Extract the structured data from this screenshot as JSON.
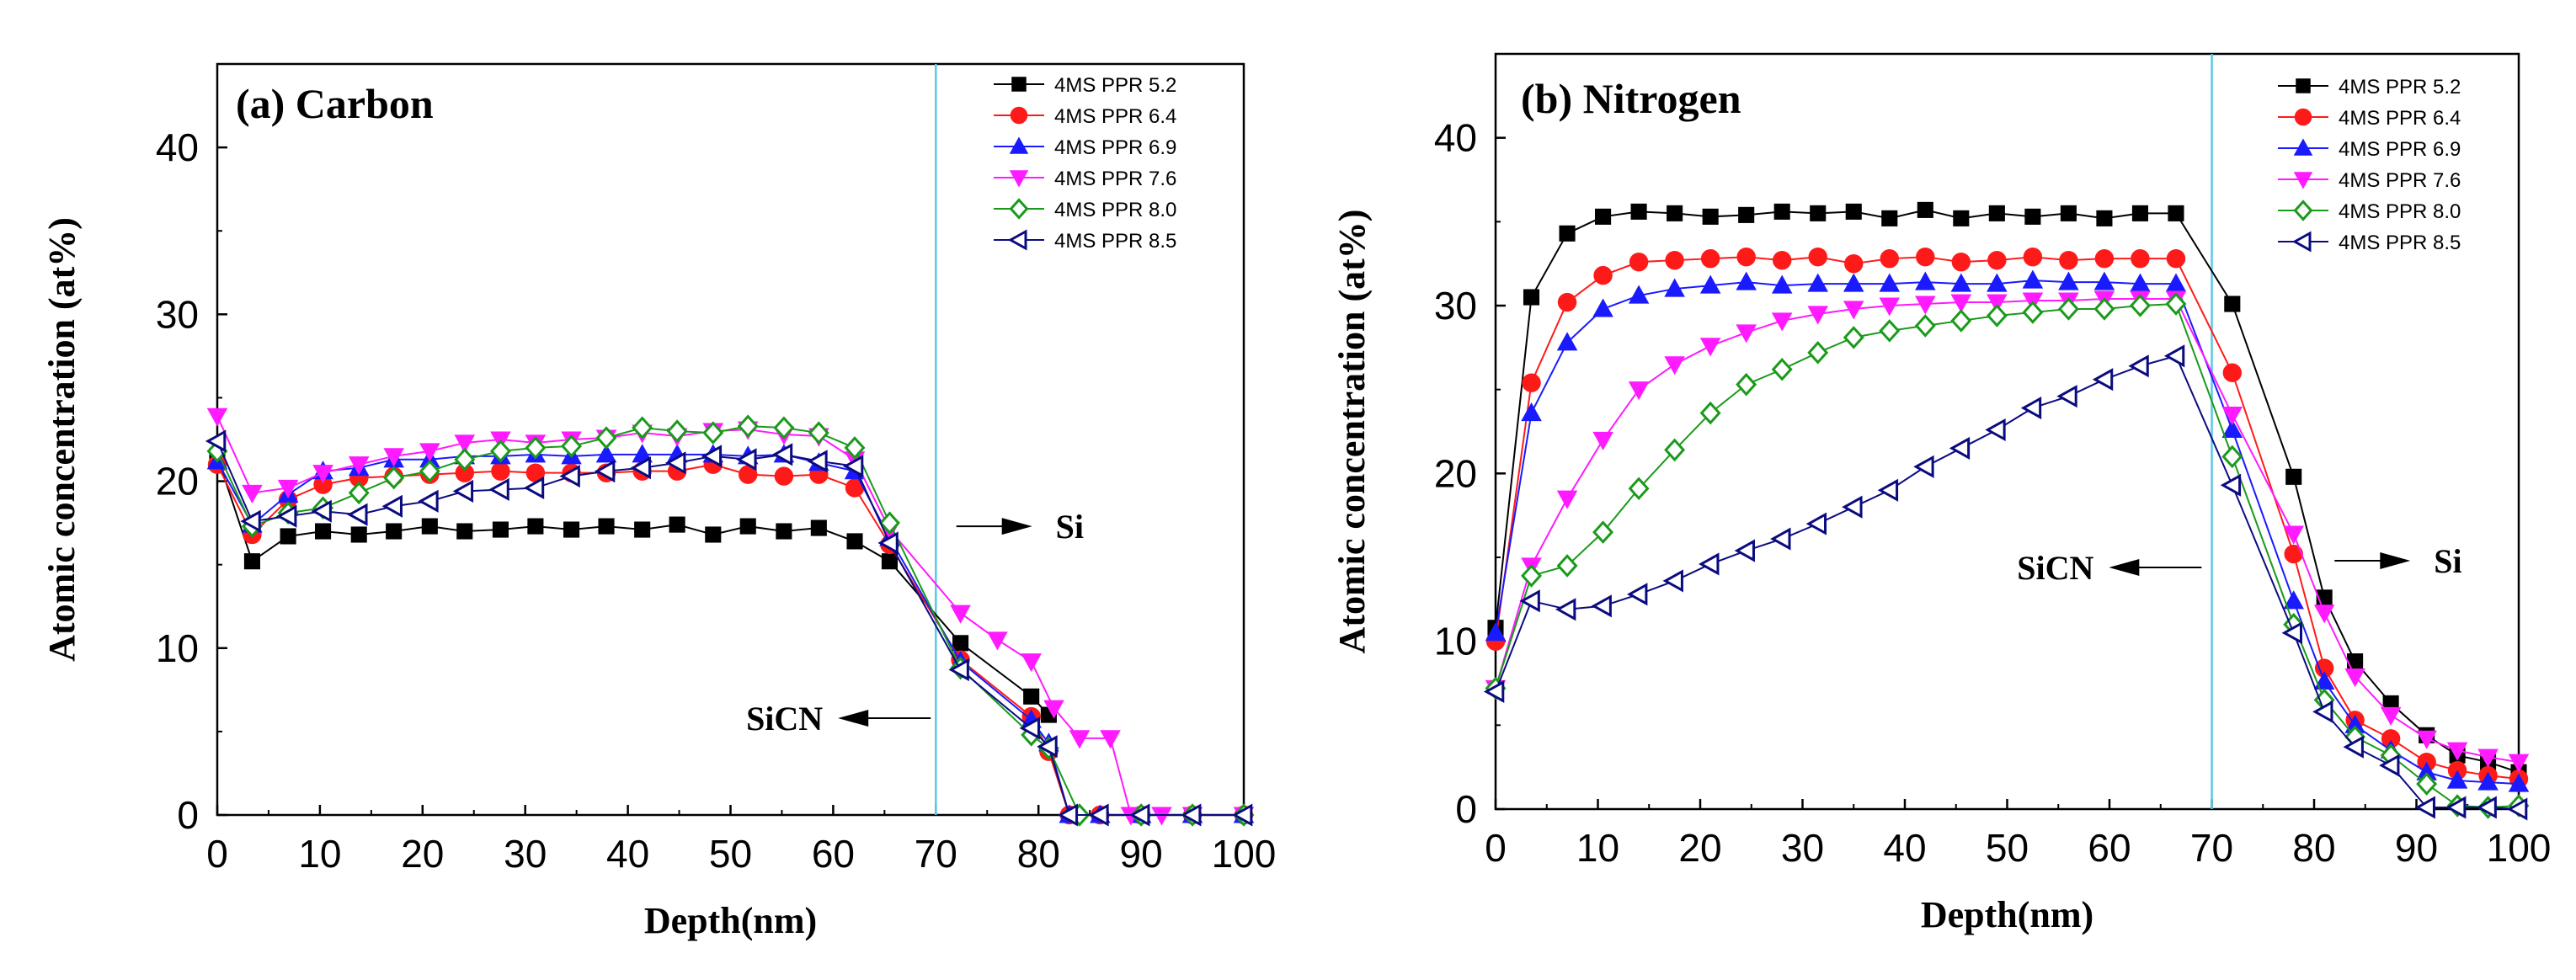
{
  "chart_data": [
    {
      "type": "line",
      "panel": "a",
      "title": "(a) Carbon",
      "xlabel": "Depth(nm)",
      "ylabel": "Atomic concentration (at%)",
      "xlim": [
        0,
        100
      ],
      "ylim": [
        0,
        45
      ],
      "xticks": [
        0,
        10,
        20,
        30,
        40,
        50,
        60,
        70,
        80,
        90,
        100
      ],
      "yticks": [
        0,
        10,
        20,
        30,
        40
      ],
      "interface_depth": 70,
      "interface_color": "#5bc8e8",
      "legend_position": "top-right",
      "annotations": [
        {
          "text": "Si",
          "arrow": "right",
          "x": 72,
          "y": 17.3
        },
        {
          "text": "SiCN",
          "arrow": "left",
          "x": 69.5,
          "y": 5.8
        }
      ],
      "series": [
        {
          "name": "4MS PPR 5.2",
          "color": "#000000",
          "marker": "square",
          "filled": true,
          "x": [
            0,
            3.4,
            6.9,
            10.3,
            13.8,
            17.2,
            20.7,
            24.1,
            27.6,
            31,
            34.5,
            37.9,
            41.4,
            44.8,
            48.3,
            51.7,
            55.2,
            58.6,
            62.1,
            65.5,
            72.4,
            79.3,
            81
          ],
          "y": [
            21.5,
            15.2,
            16.7,
            17,
            16.8,
            17,
            17.3,
            17,
            17.1,
            17.3,
            17.1,
            17.3,
            17.1,
            17.4,
            16.8,
            17.3,
            17,
            17.2,
            16.4,
            15.2,
            10.3,
            7.1,
            6
          ]
        },
        {
          "name": "4MS PPR 6.4",
          "color": "#ff1a1a",
          "marker": "circle",
          "filled": true,
          "x": [
            0,
            3.4,
            6.9,
            10.3,
            13.8,
            17.2,
            20.7,
            24.1,
            27.6,
            31,
            34.5,
            37.9,
            41.4,
            44.8,
            48.3,
            51.7,
            55.2,
            58.6,
            62.1,
            65.5,
            72.4,
            79.3,
            81,
            83,
            86,
            90,
            95,
            100
          ],
          "y": [
            21,
            16.8,
            18.9,
            19.8,
            20.2,
            20.3,
            20.4,
            20.5,
            20.6,
            20.5,
            20.5,
            20.5,
            20.6,
            20.6,
            21,
            20.4,
            20.3,
            20.4,
            19.6,
            16.2,
            9.3,
            5.9,
            3.8,
            0,
            0,
            0,
            0,
            0
          ]
        },
        {
          "name": "4MS PPR 6.9",
          "color": "#1a1aff",
          "marker": "triangle-up",
          "filled": true,
          "x": [
            0,
            3.4,
            6.9,
            10.3,
            13.8,
            17.2,
            20.7,
            24.1,
            27.6,
            31,
            34.5,
            37.9,
            41.4,
            44.8,
            48.3,
            51.7,
            55.2,
            58.6,
            62.1,
            65.5,
            72.4,
            79.3,
            81,
            83,
            86,
            90,
            95,
            100
          ],
          "y": [
            21.2,
            17.4,
            19.2,
            20.6,
            20.8,
            21.3,
            21.3,
            21.5,
            21.5,
            21.6,
            21.5,
            21.6,
            21.6,
            21.6,
            21.6,
            21.5,
            21.6,
            21.1,
            20.6,
            16.6,
            9.2,
            5.7,
            4.3,
            0,
            0,
            0,
            0,
            0
          ]
        },
        {
          "name": "4MS PPR 7.6",
          "color": "#ff1aff",
          "marker": "triangle-down",
          "filled": true,
          "x": [
            0,
            3.4,
            6.9,
            10.3,
            13.8,
            17.2,
            20.7,
            24.1,
            27.6,
            31,
            34.5,
            37.9,
            41.4,
            44.8,
            48.3,
            51.7,
            55.2,
            58.6,
            62.1,
            65.5,
            72.4,
            76,
            79.3,
            81.5,
            84,
            87,
            89,
            92,
            95,
            100
          ],
          "y": [
            23.9,
            19.3,
            19.6,
            20.5,
            21,
            21.5,
            21.8,
            22.3,
            22.5,
            22.3,
            22.5,
            22.6,
            22.9,
            22.7,
            23,
            23.1,
            22.8,
            22.7,
            21.3,
            17.1,
            12.1,
            10.5,
            9.2,
            6.4,
            4.6,
            4.6,
            0,
            0,
            0,
            0
          ]
        },
        {
          "name": "4MS PPR 8.0",
          "color": "#1a9a1a",
          "marker": "diamond",
          "filled": false,
          "x": [
            0,
            3.4,
            6.9,
            10.3,
            13.8,
            17.2,
            20.7,
            24.1,
            27.6,
            31,
            34.5,
            37.9,
            41.4,
            44.8,
            48.3,
            51.7,
            55.2,
            58.6,
            62.1,
            65.5,
            72.4,
            79.3,
            81,
            84,
            90,
            95,
            100
          ],
          "y": [
            21.8,
            17.3,
            18.1,
            18.4,
            19.3,
            20.2,
            20.6,
            21.3,
            21.8,
            22,
            22.1,
            22.6,
            23.2,
            23,
            22.9,
            23.3,
            23.2,
            22.9,
            22,
            17.5,
            8.8,
            4.8,
            4,
            0,
            0,
            0,
            0
          ]
        },
        {
          "name": "4MS PPR 8.5",
          "color": "#0b0b80",
          "marker": "triangle-left",
          "filled": false,
          "x": [
            0,
            3.4,
            6.9,
            10.3,
            13.8,
            17.2,
            20.7,
            24.1,
            27.6,
            31,
            34.5,
            37.9,
            41.4,
            44.8,
            48.3,
            51.7,
            55.2,
            58.6,
            62.1,
            65.5,
            72.4,
            79.3,
            81,
            83,
            86,
            90,
            95,
            100
          ],
          "y": [
            22.4,
            17.6,
            17.9,
            18.2,
            18,
            18.5,
            18.8,
            19.4,
            19.5,
            19.6,
            20.3,
            20.6,
            20.8,
            21.1,
            21.5,
            21.3,
            21.6,
            21.2,
            20.9,
            16.3,
            8.7,
            5.2,
            4.1,
            0,
            0,
            0,
            0,
            0
          ]
        }
      ]
    },
    {
      "type": "line",
      "panel": "b",
      "title": "(b) Nitrogen",
      "xlabel": "Depth(nm)",
      "ylabel": "Atomic concentration (at%)",
      "xlim": [
        0,
        100
      ],
      "ylim": [
        0,
        45
      ],
      "xticks": [
        0,
        10,
        20,
        30,
        40,
        50,
        60,
        70,
        80,
        90,
        100
      ],
      "yticks": [
        0,
        10,
        20,
        30,
        40
      ],
      "interface_depth": 70,
      "interface_color": "#5bc8e8",
      "legend_position": "top-right",
      "annotations": [
        {
          "text": "Si",
          "arrow": "right",
          "x": 82,
          "y": 14.8
        },
        {
          "text": "SiCN",
          "arrow": "left",
          "x": 69,
          "y": 14.4
        }
      ],
      "series": [
        {
          "name": "4MS PPR 5.2",
          "color": "#000000",
          "marker": "square",
          "filled": true,
          "x": [
            0,
            3.5,
            7,
            10.5,
            14,
            17.5,
            21,
            24.5,
            28,
            31.5,
            35,
            38.5,
            42,
            45.5,
            49,
            52.5,
            56,
            59.5,
            63,
            66.5,
            72,
            78,
            81,
            84,
            87.5,
            91,
            94,
            97,
            100
          ],
          "y": [
            10.8,
            30.5,
            34.3,
            35.3,
            35.6,
            35.5,
            35.3,
            35.4,
            35.6,
            35.5,
            35.6,
            35.2,
            35.7,
            35.2,
            35.5,
            35.3,
            35.5,
            35.2,
            35.5,
            35.5,
            30.1,
            19.8,
            12.6,
            8.8,
            6.3,
            4.4,
            3.2,
            2.8,
            2.2
          ]
        },
        {
          "name": "4MS PPR 6.4",
          "color": "#ff1a1a",
          "marker": "circle",
          "filled": true,
          "x": [
            0,
            3.5,
            7,
            10.5,
            14,
            17.5,
            21,
            24.5,
            28,
            31.5,
            35,
            38.5,
            42,
            45.5,
            49,
            52.5,
            56,
            59.5,
            63,
            66.5,
            72,
            78,
            81,
            84,
            87.5,
            91,
            94,
            97,
            100
          ],
          "y": [
            10,
            25.4,
            30.2,
            31.8,
            32.6,
            32.7,
            32.8,
            32.9,
            32.7,
            32.9,
            32.5,
            32.8,
            32.9,
            32.6,
            32.7,
            32.9,
            32.7,
            32.8,
            32.8,
            32.8,
            26,
            15.2,
            8.4,
            5.3,
            4.2,
            2.8,
            2.3,
            2.0,
            1.8
          ]
        },
        {
          "name": "4MS PPR 6.9",
          "color": "#1a1aff",
          "marker": "triangle-up",
          "filled": true,
          "x": [
            0,
            3.5,
            7,
            10.5,
            14,
            17.5,
            21,
            24.5,
            28,
            31.5,
            35,
            38.5,
            42,
            45.5,
            49,
            52.5,
            56,
            59.5,
            63,
            66.5,
            72,
            78,
            81,
            84,
            87.5,
            91,
            94,
            97,
            100
          ],
          "y": [
            10.5,
            23.6,
            27.8,
            29.8,
            30.6,
            31,
            31.2,
            31.4,
            31.2,
            31.3,
            31.3,
            31.3,
            31.4,
            31.3,
            31.3,
            31.5,
            31.4,
            31.4,
            31.3,
            31.3,
            22.6,
            12.4,
            7.6,
            5,
            3.5,
            2.2,
            1.7,
            1.6,
            1.5
          ]
        },
        {
          "name": "4MS PPR 7.6",
          "color": "#ff1aff",
          "marker": "triangle-down",
          "filled": true,
          "x": [
            0,
            3.5,
            7,
            10.5,
            14,
            17.5,
            21,
            24.5,
            28,
            31.5,
            35,
            38.5,
            42,
            45.5,
            49,
            52.5,
            56,
            59.5,
            63,
            66.5,
            72,
            78,
            81,
            84,
            87.5,
            91,
            94,
            97,
            100
          ],
          "y": [
            7.2,
            14.5,
            18.5,
            22,
            25,
            26.5,
            27.6,
            28.4,
            29.1,
            29.5,
            29.8,
            30,
            30.1,
            30.2,
            30.2,
            30.3,
            30.3,
            30.4,
            30.4,
            30.4,
            23.5,
            16.4,
            11.7,
            7.9,
            5.6,
            4.2,
            3.5,
            3.1,
            2.8
          ]
        },
        {
          "name": "4MS PPR 8.0",
          "color": "#1a9a1a",
          "marker": "diamond",
          "filled": false,
          "x": [
            0,
            3.5,
            7,
            10.5,
            14,
            17.5,
            21,
            24.5,
            28,
            31.5,
            35,
            38.5,
            42,
            45.5,
            49,
            52.5,
            56,
            59.5,
            63,
            66.5,
            72,
            78,
            81,
            84,
            87.5,
            91,
            94,
            97,
            100
          ],
          "y": [
            7.2,
            13.9,
            14.5,
            16.5,
            19.1,
            21.4,
            23.6,
            25.3,
            26.2,
            27.2,
            28.1,
            28.5,
            28.8,
            29.1,
            29.4,
            29.6,
            29.8,
            29.8,
            30,
            30.1,
            21,
            11,
            6.5,
            4.3,
            3.2,
            1.5,
            0.2,
            0.1,
            0.2
          ]
        },
        {
          "name": "4MS PPR 8.5",
          "color": "#0b0b80",
          "marker": "triangle-left",
          "filled": false,
          "x": [
            0,
            3.5,
            7,
            10.5,
            14,
            17.5,
            21,
            24.5,
            28,
            31.5,
            35,
            38.5,
            42,
            45.5,
            49,
            52.5,
            56,
            59.5,
            63,
            66.5,
            72,
            78,
            81,
            84,
            87.5,
            91,
            94,
            97,
            100
          ],
          "y": [
            7,
            12.4,
            11.9,
            12.1,
            12.8,
            13.6,
            14.6,
            15.4,
            16.1,
            17,
            18,
            19,
            20.4,
            21.5,
            22.6,
            23.9,
            24.6,
            25.6,
            26.4,
            27,
            19.3,
            10.5,
            5.8,
            3.7,
            2.6,
            0.1,
            0.1,
            0.1,
            0
          ]
        }
      ]
    }
  ]
}
